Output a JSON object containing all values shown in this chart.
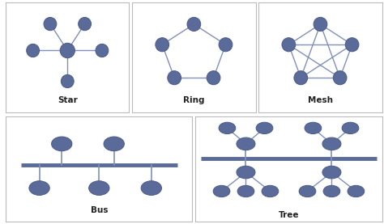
{
  "node_color": "#5a6b9a",
  "node_edge_color": "#4a5a88",
  "line_color": "#8090b8",
  "background": "#ffffff",
  "border_color": "#bbbbbb",
  "label_fontsize": 7.5,
  "label_color": "#222222",
  "labels": {
    "star": "Star",
    "ring": "Ring",
    "mesh": "Mesh",
    "bus": "Bus",
    "tree": "Tree"
  }
}
